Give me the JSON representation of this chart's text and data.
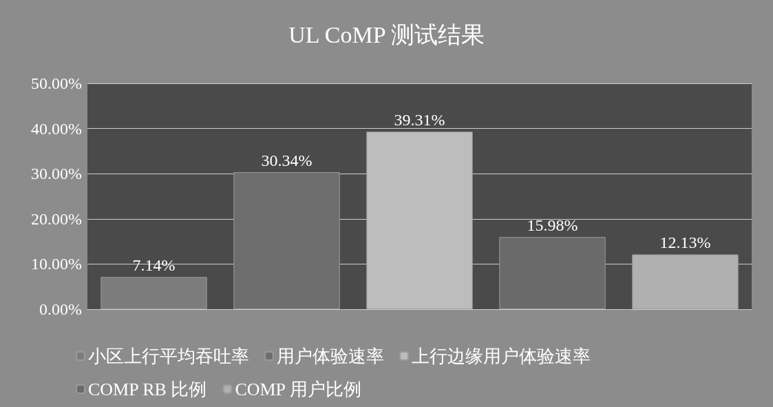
{
  "chart_data": {
    "type": "bar",
    "title": "UL CoMP 测试结果",
    "categories": [
      null,
      null,
      null,
      null,
      null
    ],
    "series": [
      {
        "name": "小区上行平均吞吐率",
        "color": "#7c7c7c",
        "values": [
          7.14,
          null,
          null,
          null,
          null
        ],
        "value_labels": [
          "7.14%",
          null,
          null,
          null,
          null
        ]
      },
      {
        "name": "用户体验速率",
        "color": "#6e6e6e",
        "values": [
          null,
          30.34,
          null,
          null,
          null
        ],
        "value_labels": [
          null,
          "30.34%",
          null,
          null,
          null
        ]
      },
      {
        "name": "上行边缘用户体验速率",
        "color": "#bdbdbd",
        "values": [
          null,
          null,
          39.31,
          null,
          null
        ],
        "value_labels": [
          null,
          null,
          "39.31%",
          null,
          null
        ]
      },
      {
        "name": "COMP RB 比例",
        "color": "#6a6a6a",
        "values": [
          null,
          null,
          null,
          15.98,
          null
        ],
        "value_labels": [
          null,
          null,
          null,
          "15.98%",
          null
        ]
      },
      {
        "name": "COMP 用户比例",
        "color": "#b0b0b0",
        "values": [
          null,
          null,
          null,
          null,
          12.13
        ],
        "value_labels": [
          null,
          null,
          null,
          null,
          "12.13%"
        ]
      }
    ],
    "ylim": [
      0,
      50
    ],
    "yticks": [
      {
        "value": 0,
        "label": "0.00%"
      },
      {
        "value": 10,
        "label": "10.00%"
      },
      {
        "value": 20,
        "label": "20.00%"
      },
      {
        "value": 30,
        "label": "30.00%"
      },
      {
        "value": 40,
        "label": "40.00%"
      },
      {
        "value": 50,
        "label": "50.00%"
      }
    ],
    "grid": "y",
    "legend": "bottom"
  }
}
